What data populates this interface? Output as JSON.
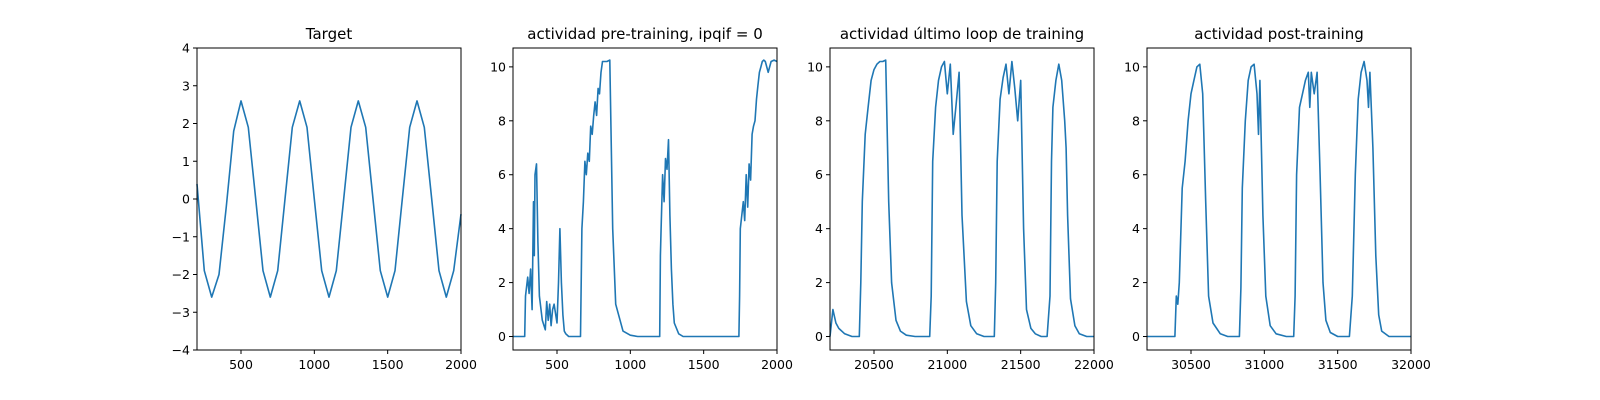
{
  "chart_data": [
    {
      "type": "line",
      "title": "Target",
      "xlim": [
        200,
        2000
      ],
      "ylim": [
        -4,
        4
      ],
      "xticks": [
        500,
        1000,
        1500,
        2000
      ],
      "yticks": [
        -4,
        -3,
        -2,
        -1,
        0,
        1,
        2,
        3,
        4
      ],
      "xtick_labels": [
        "500",
        "1000",
        "1500",
        "2000"
      ],
      "ytick_labels": [
        "−4",
        "−3",
        "−2",
        "−1",
        "0",
        "1",
        "2",
        "3",
        "4"
      ],
      "series": [
        {
          "color": "#1f77b4",
          "x": [
            200,
            250,
            300,
            350,
            400,
            450,
            500,
            550,
            600,
            650,
            700,
            750,
            800,
            850,
            900,
            950,
            1000,
            1050,
            1100,
            1150,
            1200,
            1250,
            1300,
            1350,
            1400,
            1450,
            1500,
            1550,
            1600,
            1650,
            1700,
            1750,
            1800,
            1850,
            1900,
            1950,
            2000
          ],
          "y": [
            0.4,
            -1.9,
            -2.6,
            -2.0,
            -0.2,
            1.8,
            2.6,
            1.9,
            0.0,
            -1.9,
            -2.6,
            -1.9,
            0.0,
            1.9,
            2.6,
            1.9,
            0.0,
            -1.9,
            -2.6,
            -1.9,
            0.0,
            1.9,
            2.6,
            1.9,
            0.0,
            -1.9,
            -2.6,
            -1.9,
            0.0,
            1.9,
            2.6,
            1.9,
            0.0,
            -1.9,
            -2.6,
            -1.9,
            -0.4
          ]
        }
      ]
    },
    {
      "type": "line",
      "title": "actividad pre-training, ipqif = 0",
      "xlim": [
        200,
        2000
      ],
      "ylim": [
        -0.5,
        10.7
      ],
      "xticks": [
        500,
        1000,
        1500,
        2000
      ],
      "yticks": [
        0,
        2,
        4,
        6,
        8,
        10
      ],
      "xtick_labels": [
        "500",
        "1000",
        "1500",
        "2000"
      ],
      "ytick_labels": [
        "0",
        "2",
        "4",
        "6",
        "8",
        "10"
      ],
      "series": [
        {
          "color": "#1f77b4",
          "x": [
            200,
            280,
            285,
            300,
            310,
            320,
            330,
            340,
            345,
            350,
            360,
            370,
            380,
            400,
            420,
            430,
            440,
            450,
            460,
            470,
            480,
            500,
            510,
            520,
            530,
            540,
            550,
            560,
            580,
            620,
            660,
            670,
            680,
            690,
            700,
            710,
            720,
            730,
            740,
            750,
            760,
            770,
            780,
            790,
            800,
            810,
            820,
            840,
            860,
            880,
            900,
            950,
            1000,
            1050,
            1100,
            1150,
            1200,
            1205,
            1210,
            1220,
            1230,
            1240,
            1250,
            1260,
            1270,
            1280,
            1290,
            1300,
            1330,
            1360,
            1400,
            1500,
            1600,
            1700,
            1740,
            1745,
            1750,
            1760,
            1770,
            1780,
            1790,
            1800,
            1810,
            1820,
            1830,
            1840,
            1850,
            1860,
            1870,
            1880,
            1890,
            1900,
            1910,
            1920,
            1940,
            1960,
            1980,
            2000
          ],
          "y": [
            0.0,
            0.0,
            1.5,
            2.2,
            1.6,
            2.5,
            1.0,
            5.0,
            3.0,
            6.0,
            6.4,
            3.5,
            1.5,
            0.6,
            0.25,
            1.3,
            0.6,
            1.2,
            0.4,
            1.0,
            1.2,
            0.5,
            2.0,
            4.0,
            2.0,
            0.8,
            0.2,
            0.1,
            0.0,
            0.0,
            0.0,
            4.0,
            5.0,
            6.5,
            6.0,
            6.8,
            6.5,
            7.8,
            7.5,
            8.2,
            8.7,
            8.2,
            9.2,
            9.0,
            9.8,
            10.2,
            10.2,
            10.2,
            10.25,
            4.0,
            1.2,
            0.2,
            0.05,
            0.0,
            0.0,
            0.0,
            0.0,
            3.0,
            4.0,
            6.0,
            5.0,
            6.6,
            6.2,
            7.3,
            4.5,
            2.5,
            1.2,
            0.5,
            0.1,
            0.0,
            0.0,
            0.0,
            0.0,
            0.0,
            0.0,
            1.5,
            4.0,
            4.5,
            5.0,
            4.3,
            6.0,
            4.8,
            6.4,
            5.8,
            7.5,
            7.8,
            8.0,
            8.8,
            9.3,
            9.8,
            10.0,
            10.2,
            10.25,
            10.2,
            9.8,
            10.2,
            10.25,
            10.2
          ]
        }
      ]
    },
    {
      "type": "line",
      "title": "actividad último loop de training",
      "xlim": [
        20200,
        22000
      ],
      "ylim": [
        -0.5,
        10.7
      ],
      "xticks": [
        20500,
        21000,
        21500,
        22000
      ],
      "yticks": [
        0,
        2,
        4,
        6,
        8,
        10
      ],
      "xtick_labels": [
        "20500",
        "21000",
        "21500",
        "22000"
      ],
      "ytick_labels": [
        "0",
        "2",
        "4",
        "6",
        "8",
        "10"
      ],
      "series": [
        {
          "color": "#1f77b4",
          "x": [
            20200,
            20220,
            20240,
            20260,
            20300,
            20350,
            20400,
            20410,
            20420,
            20440,
            20460,
            20480,
            20500,
            20520,
            20540,
            20560,
            20580,
            20600,
            20620,
            20650,
            20680,
            20720,
            20780,
            20850,
            20880,
            20890,
            20900,
            20920,
            20940,
            20960,
            20980,
            21000,
            21020,
            21040,
            21060,
            21080,
            21100,
            21130,
            21160,
            21200,
            21250,
            21320,
            21330,
            21340,
            21360,
            21380,
            21400,
            21420,
            21440,
            21460,
            21480,
            21500,
            21520,
            21540,
            21570,
            21600,
            21640,
            21680,
            21700,
            21710,
            21720,
            21740,
            21760,
            21780,
            21800,
            21810,
            21820,
            21840,
            21870,
            21900,
            21950,
            22000
          ],
          "y": [
            0.0,
            1.0,
            0.5,
            0.3,
            0.1,
            0.0,
            0.0,
            2.0,
            5.0,
            7.5,
            8.5,
            9.5,
            9.9,
            10.1,
            10.2,
            10.2,
            10.25,
            5.0,
            2.0,
            0.6,
            0.2,
            0.05,
            0.0,
            0.0,
            0.0,
            1.5,
            6.5,
            8.5,
            9.5,
            10.0,
            10.2,
            9.0,
            10.1,
            7.5,
            8.6,
            9.8,
            4.5,
            1.3,
            0.4,
            0.1,
            0.0,
            0.0,
            2.0,
            6.5,
            8.8,
            9.6,
            10.1,
            9.0,
            10.2,
            9.2,
            8.0,
            9.5,
            4.0,
            1.0,
            0.3,
            0.1,
            0.0,
            0.0,
            1.5,
            6.5,
            8.5,
            9.5,
            10.1,
            9.5,
            8.0,
            7.0,
            4.5,
            1.4,
            0.4,
            0.1,
            0.0,
            0.0
          ]
        }
      ]
    },
    {
      "type": "line",
      "title": "actividad post-training",
      "xlim": [
        30200,
        32000
      ],
      "ylim": [
        -0.5,
        10.7
      ],
      "xticks": [
        30500,
        31000,
        31500,
        32000
      ],
      "yticks": [
        0,
        2,
        4,
        6,
        8,
        10
      ],
      "xtick_labels": [
        "30500",
        "31000",
        "31500",
        "32000"
      ],
      "ytick_labels": [
        "0",
        "2",
        "4",
        "6",
        "8",
        "10"
      ],
      "series": [
        {
          "color": "#1f77b4",
          "x": [
            30200,
            30300,
            30390,
            30400,
            30410,
            30420,
            30440,
            30460,
            30480,
            30500,
            30520,
            30540,
            30560,
            30580,
            30600,
            30620,
            30650,
            30700,
            30750,
            30800,
            30830,
            30840,
            30850,
            30870,
            30890,
            30910,
            30930,
            30950,
            30960,
            30970,
            30990,
            31010,
            31040,
            31080,
            31150,
            31200,
            31210,
            31220,
            31240,
            31260,
            31280,
            31300,
            31310,
            31320,
            31340,
            31360,
            31380,
            31400,
            31420,
            31450,
            31500,
            31550,
            31580,
            31600,
            31620,
            31640,
            31660,
            31680,
            31700,
            31710,
            31720,
            31740,
            31760,
            31780,
            31800,
            31850,
            31900,
            31950,
            32000
          ],
          "y": [
            0.0,
            0.0,
            0.0,
            1.5,
            1.2,
            2.0,
            5.5,
            6.5,
            8.0,
            9.0,
            9.5,
            10.0,
            10.1,
            9.0,
            5.0,
            1.5,
            0.5,
            0.1,
            0.0,
            0.0,
            0.0,
            1.8,
            5.5,
            8.0,
            9.5,
            10.0,
            10.1,
            9.0,
            7.5,
            9.5,
            4.5,
            1.5,
            0.4,
            0.1,
            0.0,
            0.0,
            1.5,
            6.0,
            8.5,
            9.0,
            9.5,
            9.8,
            8.5,
            9.8,
            9.0,
            9.8,
            6.0,
            2.0,
            0.6,
            0.15,
            0.0,
            0.0,
            0.0,
            1.5,
            6.0,
            8.8,
            9.8,
            10.2,
            9.5,
            8.5,
            9.8,
            7.0,
            3.0,
            0.8,
            0.2,
            0.0,
            0.0,
            0.0,
            0.0
          ]
        }
      ]
    }
  ]
}
